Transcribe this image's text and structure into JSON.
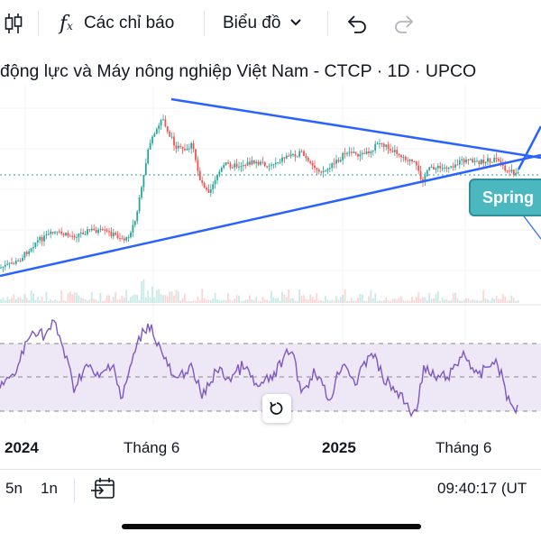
{
  "toolbar": {
    "indicators_label": "Các chỉ báo",
    "chart_type_label": "Biểu đồ",
    "icons": [
      "candles-icon",
      "fx-icon",
      "chevron-down-icon",
      "undo-icon",
      "redo-icon"
    ]
  },
  "chart": {
    "title": "động lực và Máy nông nghiệp Việt Nam - CTCP · 1D · UPCO",
    "annotation_label": "Spring",
    "x_axis_labels": [
      {
        "text": "2024",
        "bold": true
      },
      {
        "text": "Tháng 6",
        "bold": false
      },
      {
        "text": "2025",
        "bold": true
      },
      {
        "text": "Tháng 6",
        "bold": false
      }
    ],
    "colors": {
      "up": "#26a69a",
      "down": "#ef5350",
      "trendline": "#2962ff",
      "rsi_line": "#7e57c2",
      "rsi_band": "#ede7f6",
      "spring_box": "#4bb8c0"
    }
  },
  "bottom_bar": {
    "interval_5n": "5n",
    "interval_1n": "1n",
    "time": "09:40:17 (UT"
  }
}
